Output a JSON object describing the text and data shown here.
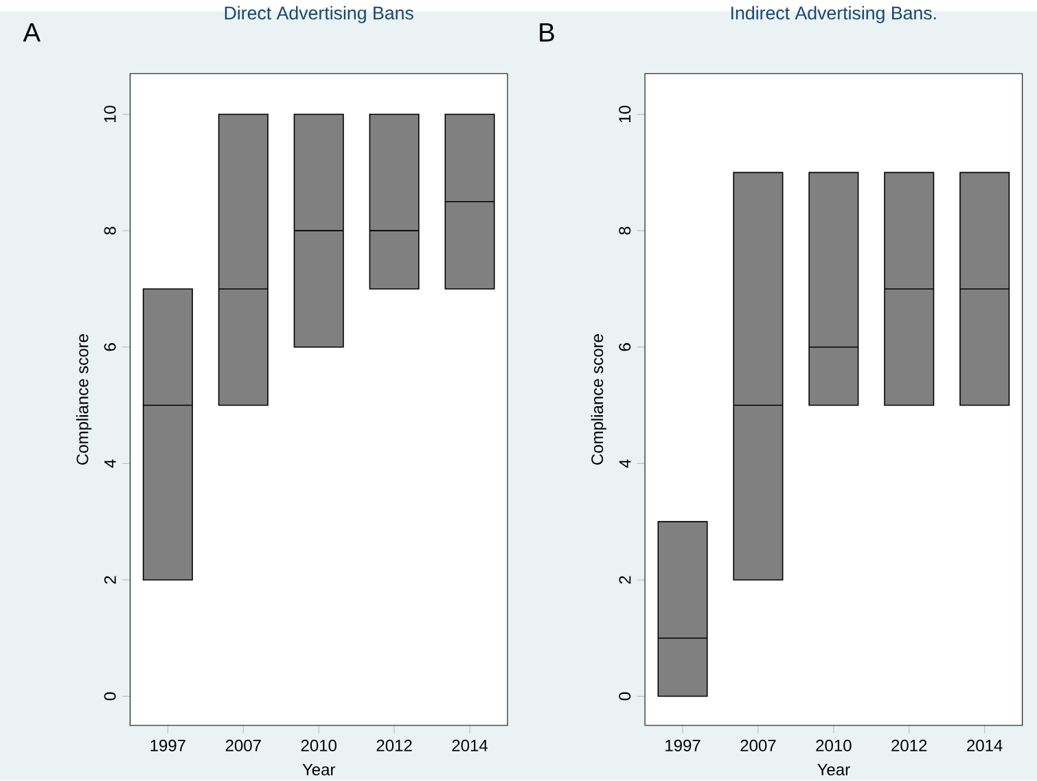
{
  "chart_data": [
    {
      "type": "box",
      "title": "Direct Advertising Bans",
      "xlabel": "Year",
      "ylabel": "Compliance score",
      "annotations": [
        "A"
      ],
      "categories": [
        "1997",
        "2007",
        "2010",
        "2012",
        "2014"
      ],
      "color": "#808080",
      "ylim": [
        -0.5,
        10.7
      ],
      "yticks": [
        0,
        2,
        4,
        6,
        8,
        10
      ],
      "boxes": [
        {
          "low": 2,
          "q1": 2,
          "median": 5,
          "q3": 7,
          "high": 7
        },
        {
          "low": 5,
          "q1": 5,
          "median": 7,
          "q3": 10,
          "high": 10
        },
        {
          "low": 6,
          "q1": 6,
          "median": 8,
          "q3": 10,
          "high": 10
        },
        {
          "low": 7,
          "q1": 7,
          "median": 8,
          "q3": 10,
          "high": 10
        },
        {
          "low": 7,
          "q1": 7,
          "median": 8.5,
          "q3": 10,
          "high": 10
        }
      ]
    },
    {
      "type": "box",
      "title": "Indirect Advertising Bans.",
      "xlabel": "Year",
      "ylabel": "Compliance score",
      "annotations": [
        "B"
      ],
      "categories": [
        "1997",
        "2007",
        "2010",
        "2012",
        "2014"
      ],
      "color": "#808080",
      "ylim": [
        -0.5,
        10.7
      ],
      "yticks": [
        0,
        2,
        4,
        6,
        8,
        10
      ],
      "boxes": [
        {
          "low": 0,
          "q1": 0,
          "median": 1,
          "q3": 3,
          "high": 3
        },
        {
          "low": 2,
          "q1": 2,
          "median": 5,
          "q3": 9,
          "high": 9
        },
        {
          "low": 5,
          "q1": 5,
          "median": 6,
          "q3": 9,
          "high": 9
        },
        {
          "low": 5,
          "q1": 5,
          "median": 7,
          "q3": 9,
          "high": 9
        },
        {
          "low": 5,
          "q1": 5,
          "median": 7,
          "q3": 9,
          "high": 9
        }
      ]
    }
  ]
}
